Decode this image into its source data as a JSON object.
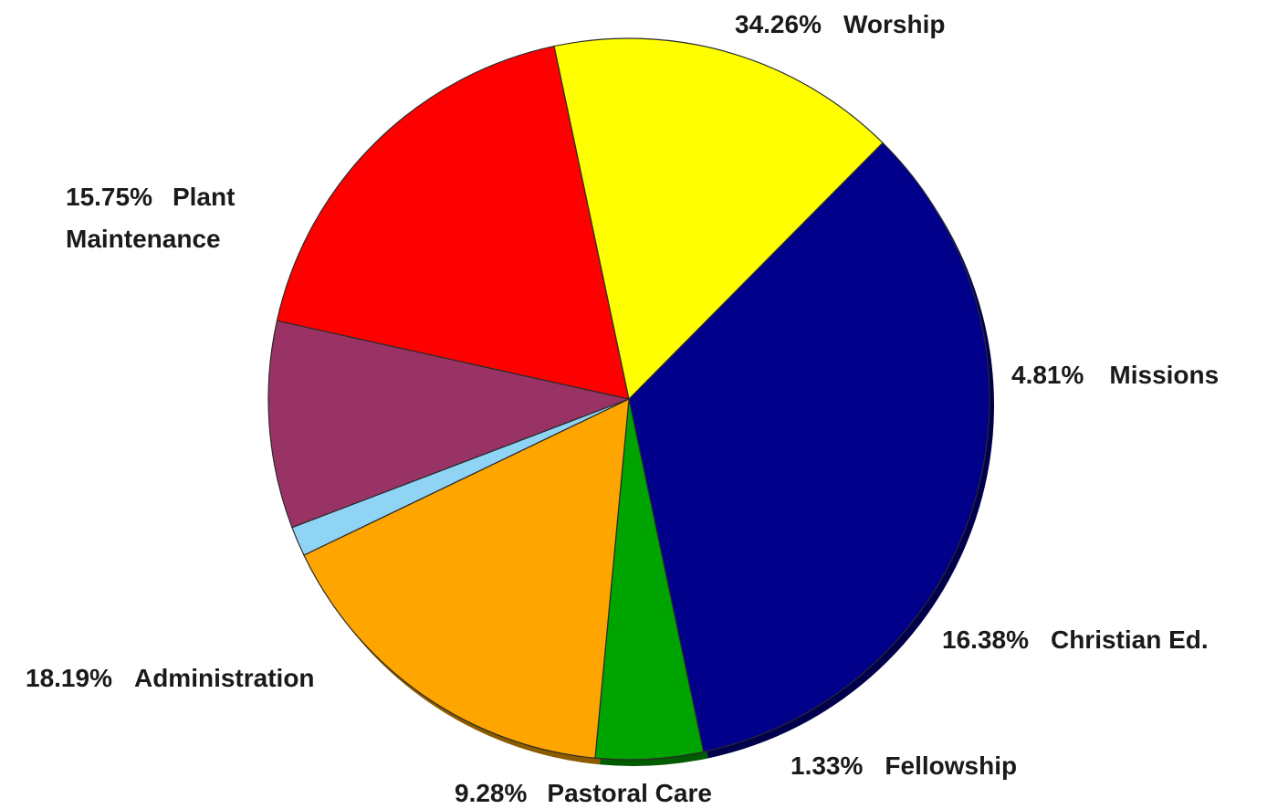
{
  "chart_data": {
    "type": "pie",
    "start_angle_deg": -45.27,
    "direction": "clockwise",
    "shadow": true,
    "legend": "none",
    "slices": [
      {
        "label": "Worship",
        "percent_text": "34.26%",
        "value": 34.26,
        "color": "#00008b"
      },
      {
        "label": "Missions",
        "percent_text": "4.81%",
        "value": 4.81,
        "color": "#00a400"
      },
      {
        "label": "Christian Ed.",
        "percent_text": "16.38%",
        "value": 16.38,
        "color": "#ffa500"
      },
      {
        "label": "Fellowship",
        "percent_text": "1.33%",
        "value": 1.33,
        "color": "#8fd3f5"
      },
      {
        "label": "Pastoral Care",
        "percent_text": "9.28%",
        "value": 9.28,
        "color": "#993366"
      },
      {
        "label": "Administration",
        "percent_text": "18.19%",
        "value": 18.19,
        "color": "#ff0000"
      },
      {
        "label": "Plant Maintenance",
        "label_lines": [
          "Plant",
          "Maintenance"
        ],
        "percent_text": "15.75%",
        "value": 15.75,
        "color": "#ffff00"
      }
    ]
  }
}
